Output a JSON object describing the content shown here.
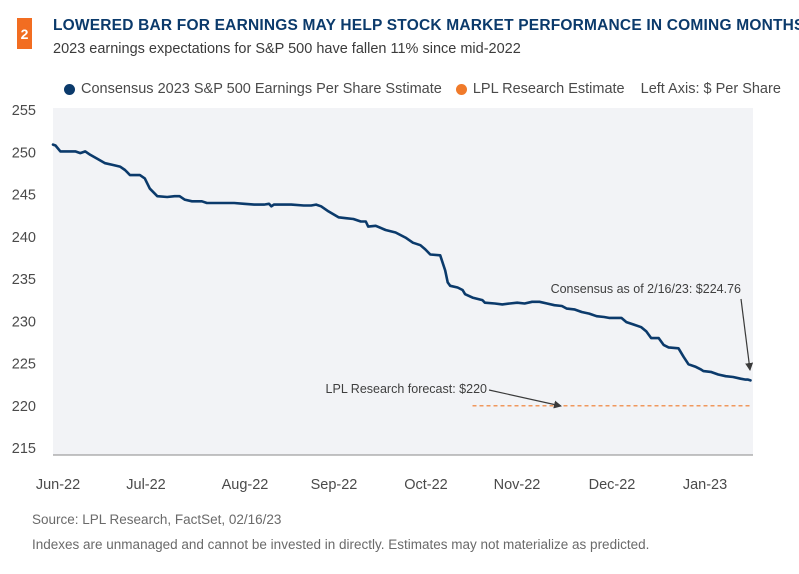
{
  "header": {
    "badge": "2",
    "title": "LOWERED BAR FOR EARNINGS MAY HELP STOCK MARKET PERFORMANCE IN COMING MONTHS",
    "subtitle": "2023 earnings expectations for S&P 500 have fallen 11% since mid-2022"
  },
  "legend": {
    "items": [
      {
        "label": "Consensus 2023 S&P 500 Earnings Per Share Sstimate",
        "color": "#0b3a6b"
      },
      {
        "label": "LPL Research Estimate",
        "color": "#f07a2a"
      }
    ],
    "axis_note": "Left Axis: $ Per Share"
  },
  "footer": {
    "source": "Source: LPL Research, FactSet, 02/16/23",
    "disclaimer": "Indexes are unmanaged and cannot be invested in directly. Estimates may not materialize as predicted."
  },
  "chart_data": {
    "type": "line",
    "title": "LOWERED BAR FOR EARNINGS MAY HELP STOCK MARKET PERFORMANCE IN COMING MONTHS",
    "subtitle": "2023 earnings expectations for S&P 500 have fallen 11% since mid-2022",
    "xlabel": "",
    "ylabel": "$ Per Share",
    "ylim": [
      215,
      255
    ],
    "yticks": [
      255,
      250,
      245,
      240,
      235,
      230,
      225,
      220,
      215
    ],
    "xticks": [
      "Jun-22",
      "Jul-22",
      "Aug-22",
      "Sep-22",
      "Oct-22",
      "Nov-22",
      "Dec-22",
      "Jan-23"
    ],
    "x_unit": "days since Jun-22 tick",
    "x_range": [
      0,
      262
    ],
    "grid": false,
    "legend_position": "top",
    "series": [
      {
        "name": "Consensus 2023 S&P 500 Earnings Per Share Sstimate",
        "color": "#0b3a6b",
        "style": "solid",
        "points": [
          [
            0,
            250.9
          ],
          [
            1,
            250.8
          ],
          [
            3,
            250.1
          ],
          [
            5,
            250.1
          ],
          [
            9,
            250.1
          ],
          [
            11,
            249.9
          ],
          [
            13,
            250.1
          ],
          [
            15,
            249.7
          ],
          [
            18,
            249.2
          ],
          [
            21,
            248.7
          ],
          [
            24,
            248.5
          ],
          [
            27,
            248.3
          ],
          [
            29,
            247.9
          ],
          [
            31,
            247.3
          ],
          [
            35,
            247.3
          ],
          [
            37,
            246.9
          ],
          [
            39,
            245.7
          ],
          [
            42,
            244.8
          ],
          [
            46,
            244.7
          ],
          [
            49,
            244.8
          ],
          [
            51,
            244.8
          ],
          [
            53,
            244.4
          ],
          [
            56,
            244.2
          ],
          [
            60,
            244.2
          ],
          [
            62,
            244.0
          ],
          [
            67,
            244.0
          ],
          [
            73,
            244.0
          ],
          [
            77,
            243.9
          ],
          [
            81,
            243.8
          ],
          [
            85,
            243.8
          ],
          [
            87,
            243.9
          ],
          [
            88,
            243.6
          ],
          [
            89,
            243.8
          ],
          [
            96,
            243.8
          ],
          [
            101,
            243.7
          ],
          [
            104,
            243.7
          ],
          [
            106,
            243.8
          ],
          [
            108,
            243.6
          ],
          [
            111,
            243.0
          ],
          [
            115,
            242.3
          ],
          [
            118,
            242.2
          ],
          [
            121,
            242.1
          ],
          [
            124,
            241.8
          ],
          [
            126,
            241.8
          ],
          [
            127,
            241.2
          ],
          [
            130,
            241.3
          ],
          [
            134,
            240.8
          ],
          [
            138,
            240.5
          ],
          [
            142,
            239.9
          ],
          [
            145,
            239.3
          ],
          [
            148,
            239.0
          ],
          [
            150,
            238.5
          ],
          [
            152,
            237.9
          ],
          [
            156,
            237.8
          ],
          [
            158,
            236.0
          ],
          [
            159,
            234.6
          ],
          [
            160,
            234.2
          ],
          [
            163,
            234.0
          ],
          [
            165,
            233.7
          ],
          [
            166,
            233.2
          ],
          [
            169,
            232.8
          ],
          [
            173,
            232.5
          ],
          [
            174,
            232.2
          ],
          [
            178,
            232.1
          ],
          [
            181,
            232.0
          ],
          [
            184,
            232.1
          ],
          [
            187,
            232.2
          ],
          [
            190,
            232.1
          ],
          [
            193,
            232.3
          ],
          [
            196,
            232.3
          ],
          [
            199,
            232.1
          ],
          [
            202,
            231.9
          ],
          [
            205,
            231.8
          ],
          [
            207,
            231.5
          ],
          [
            210,
            231.4
          ],
          [
            213,
            231.1
          ],
          [
            216,
            230.9
          ],
          [
            219,
            230.6
          ],
          [
            222,
            230.5
          ],
          [
            224,
            230.4
          ],
          [
            229,
            230.4
          ],
          [
            231,
            229.9
          ],
          [
            234,
            229.6
          ],
          [
            237,
            229.3
          ],
          [
            239,
            228.8
          ],
          [
            241,
            228.0
          ],
          [
            244,
            228.0
          ],
          [
            246,
            227.2
          ],
          [
            248,
            226.9
          ],
          [
            252,
            226.8
          ],
          [
            254,
            225.8
          ],
          [
            256,
            224.9
          ],
          [
            259,
            224.6
          ],
          [
            261,
            224.3
          ],
          [
            262,
            224.1
          ],
          [
            265,
            224.0
          ],
          [
            268,
            223.7
          ],
          [
            271,
            223.5
          ],
          [
            274,
            223.4
          ],
          [
            277,
            223.2
          ],
          [
            279,
            223.1
          ],
          [
            280,
            223.1
          ],
          [
            281,
            223.0
          ]
        ]
      },
      {
        "name": "LPL Research Estimate",
        "color": "#f07a2a",
        "style": "dashed",
        "points": [
          [
            169,
            220
          ],
          [
            281,
            220
          ]
        ]
      }
    ],
    "annotations": [
      {
        "text": "Consensus as of 2/16/23: $224.76",
        "target_series": 0
      },
      {
        "text": "LPL Research forecast: $220",
        "target_series": 1
      }
    ]
  }
}
